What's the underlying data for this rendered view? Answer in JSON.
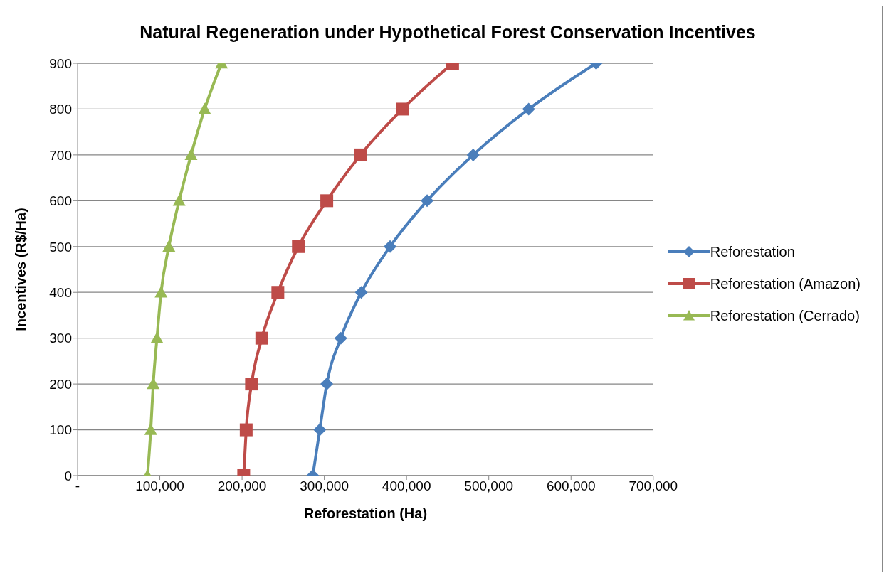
{
  "chart_data": {
    "type": "line",
    "title": "Natural Regeneration under Hypothetical Forest Conservation Incentives",
    "xlabel": "Reforestation (Ha)",
    "ylabel": "Incentives (R$/Ha)",
    "xlim": [
      0,
      700000
    ],
    "xticks": [
      {
        "value": 0,
        "label": "-"
      },
      {
        "value": 100000,
        "label": "100,000"
      },
      {
        "value": 200000,
        "label": "200,000"
      },
      {
        "value": 300000,
        "label": "300,000"
      },
      {
        "value": 400000,
        "label": "400,000"
      },
      {
        "value": 500000,
        "label": "500,000"
      },
      {
        "value": 600000,
        "label": "600,000"
      },
      {
        "value": 700000,
        "label": "700,000"
      }
    ],
    "ylim": [
      0,
      900
    ],
    "yticks": [
      0,
      100,
      200,
      300,
      400,
      500,
      600,
      700,
      800,
      900
    ],
    "grid": "y",
    "legend": "right",
    "line_style": "solid",
    "series": [
      {
        "name": "Reforestation",
        "color": "#4a7ebb",
        "marker": "diamond",
        "x": [
          286000,
          294500,
          303000,
          320000,
          345000,
          380000,
          425000,
          481000,
          548500,
          630500
        ],
        "values": [
          0,
          100,
          200,
          300,
          400,
          500,
          600,
          700,
          800,
          900
        ]
      },
      {
        "name": "Reforestation (Amazon)",
        "color": "#be4b48",
        "marker": "square",
        "x": [
          202000,
          205000,
          211500,
          224000,
          243500,
          268500,
          303000,
          344000,
          395000,
          456000
        ],
        "values": [
          0,
          100,
          200,
          300,
          400,
          500,
          600,
          700,
          800,
          900
        ]
      },
      {
        "name": "Reforestation (Cerrado)",
        "color": "#98b954",
        "marker": "triangle",
        "x": [
          85000,
          89000,
          92000,
          96500,
          101500,
          111000,
          123500,
          138000,
          154500,
          175000
        ],
        "values": [
          0,
          100,
          200,
          300,
          400,
          500,
          600,
          700,
          800,
          900
        ]
      }
    ]
  }
}
